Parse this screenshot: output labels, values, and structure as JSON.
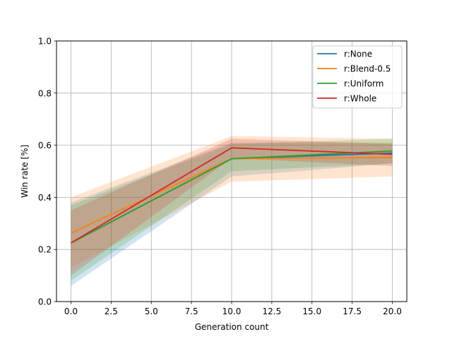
{
  "chart_data": {
    "type": "line",
    "title": "",
    "xlabel": "Generation count",
    "ylabel": "Win rate [%]",
    "xlim": [
      -0.9,
      20.9
    ],
    "ylim": [
      0.0,
      1.0
    ],
    "xticks": [
      0.0,
      2.5,
      5.0,
      7.5,
      10.0,
      12.5,
      15.0,
      17.5,
      20.0
    ],
    "xtick_labels": [
      "0.0",
      "2.5",
      "5.0",
      "7.5",
      "10.0",
      "12.5",
      "15.0",
      "17.5",
      "20.0"
    ],
    "yticks": [
      0.0,
      0.2,
      0.4,
      0.6,
      0.8,
      1.0
    ],
    "ytick_labels": [
      "0.0",
      "0.2",
      "0.4",
      "0.6",
      "0.8",
      "1.0"
    ],
    "grid": true,
    "legend_position": "top-right",
    "x": [
      0,
      10,
      20
    ],
    "series": [
      {
        "name": "r:None",
        "color": "#1f77b4",
        "values": [
          0.225,
          0.548,
          0.57
        ],
        "lower": [
          0.06,
          0.48,
          0.53
        ],
        "upper": [
          0.38,
          0.61,
          0.61
        ]
      },
      {
        "name": "r:Blend-0.5",
        "color": "#ff7f0e",
        "values": [
          0.263,
          0.548,
          0.553
        ],
        "lower": [
          0.13,
          0.46,
          0.48
        ],
        "upper": [
          0.4,
          0.635,
          0.625
        ]
      },
      {
        "name": "r:Uniform",
        "color": "#2ca02c",
        "values": [
          0.225,
          0.548,
          0.578
        ],
        "lower": [
          0.08,
          0.5,
          0.53
        ],
        "upper": [
          0.37,
          0.605,
          0.625
        ]
      },
      {
        "name": "r:Whole",
        "color": "#d62728",
        "values": [
          0.225,
          0.59,
          0.565
        ],
        "lower": [
          0.1,
          0.55,
          0.52
        ],
        "upper": [
          0.35,
          0.625,
          0.605
        ]
      }
    ]
  }
}
